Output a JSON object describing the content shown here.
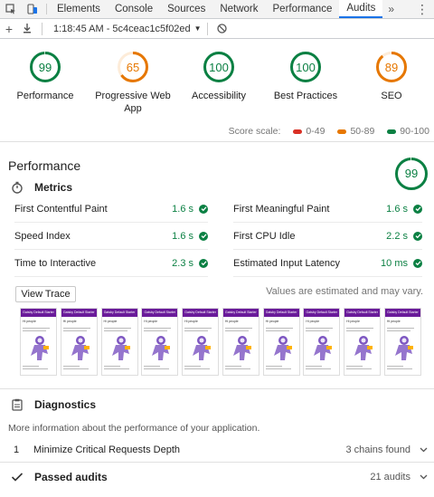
{
  "devtools": {
    "tabs": [
      {
        "label": "Elements"
      },
      {
        "label": "Console"
      },
      {
        "label": "Sources"
      },
      {
        "label": "Network"
      },
      {
        "label": "Performance"
      },
      {
        "label": "Audits"
      }
    ],
    "active_tab": "Audits",
    "more_label": "»"
  },
  "toolbar": {
    "report_select": "1:18:45 AM - 5c4ceac1c5f02ed"
  },
  "gauges": [
    {
      "score": "99",
      "label": "Performance",
      "value": 99,
      "color": "#0b8043"
    },
    {
      "score": "65",
      "label": "Progressive Web App",
      "value": 65,
      "color": "#e67700"
    },
    {
      "score": "100",
      "label": "Accessibility",
      "value": 100,
      "color": "#0b8043"
    },
    {
      "score": "100",
      "label": "Best Practices",
      "value": 100,
      "color": "#0b8043"
    },
    {
      "score": "89",
      "label": "SEO",
      "value": 89,
      "color": "#e67700"
    }
  ],
  "score_scale": {
    "label": "Score scale:",
    "ranges": [
      {
        "label": "0-49",
        "color": "#d93025"
      },
      {
        "label": "50-89",
        "color": "#e67700"
      },
      {
        "label": "90-100",
        "color": "#0b8043"
      }
    ]
  },
  "performance": {
    "title": "Performance",
    "score": "99",
    "value": 99,
    "metrics_title": "Metrics",
    "metrics": [
      {
        "name": "First Contentful Paint",
        "value": "1.6 s"
      },
      {
        "name": "First Meaningful Paint",
        "value": "1.6 s"
      },
      {
        "name": "Speed Index",
        "value": "1.6 s"
      },
      {
        "name": "First CPU Idle",
        "value": "2.2 s"
      },
      {
        "name": "Time to Interactive",
        "value": "2.3 s"
      },
      {
        "name": "Estimated Input Latency",
        "value": "10 ms"
      }
    ],
    "view_trace_label": "View Trace",
    "estimated_note": "Values are estimated and may vary.",
    "filmstrip": {
      "frame_header": "Gatsby Default Starter",
      "frame_title": "Hi people",
      "frame_count": 10
    }
  },
  "diagnostics": {
    "title": "Diagnostics",
    "description": "More information about the performance of your application.",
    "items": [
      {
        "index": "1",
        "name": "Minimize Critical Requests Depth",
        "meta": "3 chains found"
      }
    ]
  },
  "passed": {
    "title": "Passed audits",
    "count": "21 audits"
  },
  "icons": {
    "inspect": "inspect-icon",
    "device": "device-toolbar-icon",
    "kebab": "more-options-icon"
  }
}
